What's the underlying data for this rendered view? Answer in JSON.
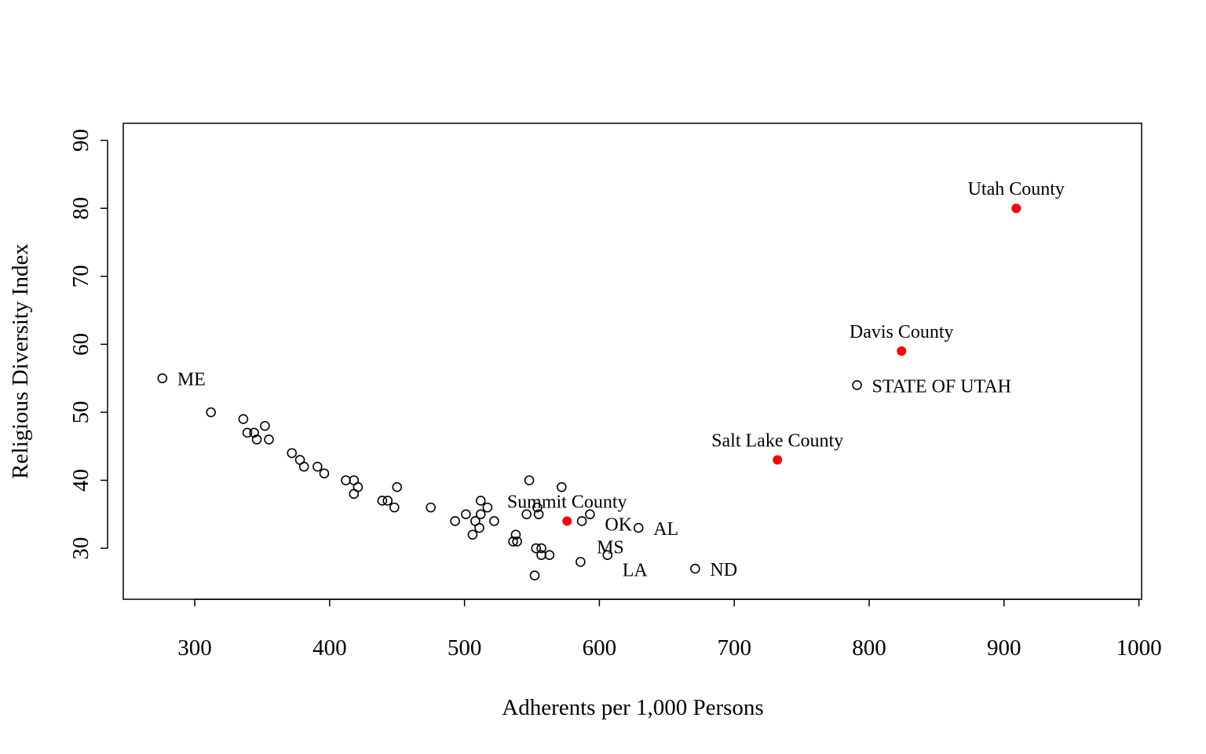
{
  "chart_data": {
    "type": "scatter",
    "title": "",
    "xlabel": "Adherents per 1,000 Persons",
    "ylabel": "Religious Diversity Index",
    "xlim": [
      247,
      1002
    ],
    "ylim": [
      22.5,
      92.5
    ],
    "xticks": [
      300,
      400,
      500,
      600,
      700,
      800,
      900,
      1000
    ],
    "yticks": [
      30,
      40,
      50,
      60,
      70,
      80,
      90
    ],
    "grid": false,
    "colors": {
      "state": "#000000",
      "county": "#ff0000"
    },
    "points": [
      {
        "x": 276,
        "y": 55,
        "label": "ME",
        "label_pos": "right"
      },
      {
        "x": 312,
        "y": 50
      },
      {
        "x": 336,
        "y": 49
      },
      {
        "x": 352,
        "y": 48
      },
      {
        "x": 339,
        "y": 47
      },
      {
        "x": 344,
        "y": 47
      },
      {
        "x": 346,
        "y": 46
      },
      {
        "x": 355,
        "y": 46
      },
      {
        "x": 372,
        "y": 44
      },
      {
        "x": 378,
        "y": 43
      },
      {
        "x": 381,
        "y": 42
      },
      {
        "x": 391,
        "y": 42
      },
      {
        "x": 396,
        "y": 41
      },
      {
        "x": 412,
        "y": 40
      },
      {
        "x": 418,
        "y": 40
      },
      {
        "x": 421,
        "y": 39
      },
      {
        "x": 418,
        "y": 38
      },
      {
        "x": 439,
        "y": 37
      },
      {
        "x": 443,
        "y": 37
      },
      {
        "x": 450,
        "y": 39
      },
      {
        "x": 448,
        "y": 36
      },
      {
        "x": 475,
        "y": 36
      },
      {
        "x": 493,
        "y": 34
      },
      {
        "x": 501,
        "y": 35
      },
      {
        "x": 506,
        "y": 32
      },
      {
        "x": 508,
        "y": 34
      },
      {
        "x": 512,
        "y": 37
      },
      {
        "x": 512,
        "y": 35
      },
      {
        "x": 517,
        "y": 36
      },
      {
        "x": 511,
        "y": 33
      },
      {
        "x": 522,
        "y": 34
      },
      {
        "x": 538,
        "y": 32
      },
      {
        "x": 536,
        "y": 31
      },
      {
        "x": 539,
        "y": 31
      },
      {
        "x": 548,
        "y": 40
      },
      {
        "x": 546,
        "y": 35
      },
      {
        "x": 554,
        "y": 36
      },
      {
        "x": 555,
        "y": 35
      },
      {
        "x": 572,
        "y": 39
      },
      {
        "x": 553,
        "y": 30
      },
      {
        "x": 557,
        "y": 30
      },
      {
        "x": 557,
        "y": 29
      },
      {
        "x": 563,
        "y": 29
      },
      {
        "x": 552,
        "y": 26
      },
      {
        "x": 586,
        "y": 28
      },
      {
        "x": 587,
        "y": 34,
        "label": "MS",
        "label_pos": "right"
      },
      {
        "x": 593,
        "y": 35,
        "label": "OK",
        "label_pos": "right"
      },
      {
        "x": 606,
        "y": 29,
        "label": "LA",
        "label_pos": "right"
      },
      {
        "x": 629,
        "y": 33,
        "label": "AL",
        "label_pos": "right"
      },
      {
        "x": 671,
        "y": 27,
        "label": "ND",
        "label_pos": "right"
      },
      {
        "x": 791,
        "y": 54,
        "label": "STATE OF UTAH",
        "label_pos": "right"
      }
    ],
    "highlighted": [
      {
        "x": 576,
        "y": 34,
        "label": "Summit County",
        "label_pos": "above"
      },
      {
        "x": 732,
        "y": 43,
        "label": "Salt Lake County",
        "label_pos": "above"
      },
      {
        "x": 824,
        "y": 59,
        "label": "Davis County",
        "label_pos": "above"
      },
      {
        "x": 909,
        "y": 80,
        "label": "Utah County",
        "label_pos": "above"
      }
    ]
  }
}
